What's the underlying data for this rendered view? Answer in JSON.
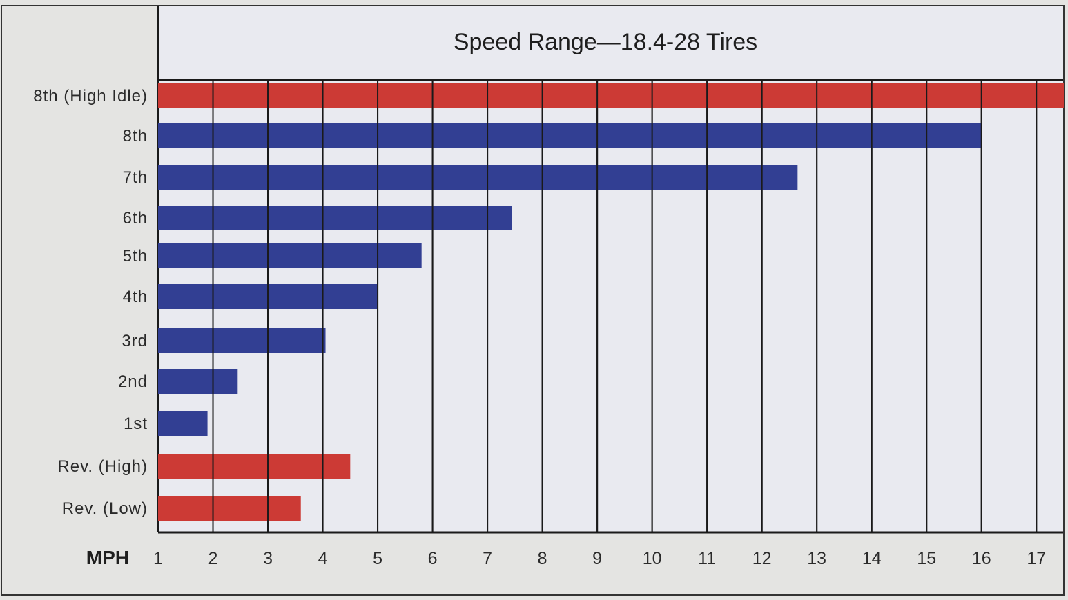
{
  "chart_data": {
    "type": "bar",
    "orientation": "horizontal",
    "title": "Speed Range—18.4-28 Tires",
    "xlabel": "MPH",
    "ylabel": "",
    "xlim": [
      1,
      17.5
    ],
    "x_ticks": [
      "1",
      "2",
      "3",
      "4",
      "5",
      "6",
      "7",
      "8",
      "9",
      "10",
      "11",
      "12",
      "13",
      "14",
      "15",
      "16",
      "17"
    ],
    "grid": "vertical",
    "legend": "none",
    "categories": [
      "8th (High Idle)",
      "8th",
      "7th",
      "6th",
      "5th",
      "4th",
      "3rd",
      "2nd",
      "1st",
      "Rev. (High)",
      "Rev. (Low)"
    ],
    "values": [
      17.5,
      16.0,
      12.65,
      7.45,
      5.8,
      5.0,
      4.05,
      2.45,
      1.9,
      4.5,
      3.6
    ],
    "bar_colors": [
      "#cc3a35",
      "#323f93",
      "#323f93",
      "#323f93",
      "#323f93",
      "#323f93",
      "#323f93",
      "#323f93",
      "#323f93",
      "#cc3a35",
      "#cc3a35"
    ],
    "colors": {
      "forward": "#323f93",
      "highlight": "#cc3a35",
      "plot_bg": "#e9eaf0",
      "frame_bg": "#e4e4e2",
      "grid": "#1a1a1a"
    }
  }
}
